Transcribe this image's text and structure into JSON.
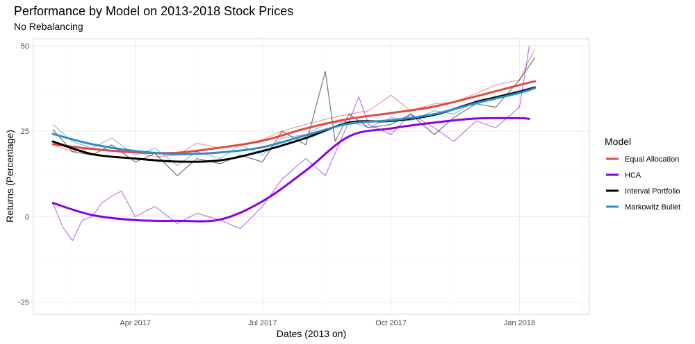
{
  "chart_data": {
    "type": "line",
    "title": "Performance by Model on 2013-2018 Stock Prices",
    "subtitle": "No Rebalancing",
    "xlabel": "Dates (2013 on)",
    "ylabel": "Returns (Percentage)",
    "x_ticks": [
      {
        "date": "2017-04-01",
        "label": "Apr 2017"
      },
      {
        "date": "2017-07-01",
        "label": "Jul 2017"
      },
      {
        "date": "2017-10-01",
        "label": "Oct 2017"
      },
      {
        "date": "2018-01-01",
        "label": "Jan 2018"
      }
    ],
    "y_ticks": [
      -25,
      0,
      25,
      50
    ],
    "xlim": [
      "2017-01-18",
      "2018-02-20"
    ],
    "ylim": [
      -28.5,
      52
    ],
    "grid": true,
    "legend": {
      "title": "Model",
      "position": "right"
    },
    "series": [
      {
        "name": "Equal Allocation",
        "color": "#E24A3F",
        "smooth": [
          {
            "x": "2017-02-01",
            "y": 21.2
          },
          {
            "x": "2017-03-01",
            "y": 19.8
          },
          {
            "x": "2017-04-01",
            "y": 18.8
          },
          {
            "x": "2017-05-01",
            "y": 18.7
          },
          {
            "x": "2017-06-01",
            "y": 20.2
          },
          {
            "x": "2017-07-01",
            "y": 22.2
          },
          {
            "x": "2017-08-01",
            "y": 25.8
          },
          {
            "x": "2017-09-01",
            "y": 28.6
          },
          {
            "x": "2017-10-01",
            "y": 30.3
          },
          {
            "x": "2017-11-01",
            "y": 32.2
          },
          {
            "x": "2017-12-01",
            "y": 35.2
          },
          {
            "x": "2018-01-01",
            "y": 38.5
          },
          {
            "x": "2018-01-12",
            "y": 39.6
          }
        ],
        "raw": [
          {
            "x": "2017-02-01",
            "y": 21
          },
          {
            "x": "2017-02-15",
            "y": 19
          },
          {
            "x": "2017-03-01",
            "y": 20
          },
          {
            "x": "2017-03-15",
            "y": 19.5
          },
          {
            "x": "2017-04-01",
            "y": 19
          },
          {
            "x": "2017-04-15",
            "y": 17.5
          },
          {
            "x": "2017-05-01",
            "y": 18
          },
          {
            "x": "2017-05-15",
            "y": 21.5
          },
          {
            "x": "2017-06-01",
            "y": 20
          },
          {
            "x": "2017-06-15",
            "y": 21
          },
          {
            "x": "2017-07-01",
            "y": 22.5
          },
          {
            "x": "2017-07-15",
            "y": 25
          },
          {
            "x": "2017-08-01",
            "y": 27
          },
          {
            "x": "2017-08-15",
            "y": 28.5
          },
          {
            "x": "2017-09-01",
            "y": 30
          },
          {
            "x": "2017-09-15",
            "y": 31
          },
          {
            "x": "2017-10-01",
            "y": 35.5
          },
          {
            "x": "2017-10-15",
            "y": 31
          },
          {
            "x": "2017-11-01",
            "y": 33
          },
          {
            "x": "2017-11-15",
            "y": 33.5
          },
          {
            "x": "2017-12-01",
            "y": 36
          },
          {
            "x": "2017-12-15",
            "y": 38.5
          },
          {
            "x": "2018-01-01",
            "y": 40
          },
          {
            "x": "2018-01-12",
            "y": 49
          }
        ]
      },
      {
        "name": "HCA",
        "color": "#8A00E0",
        "smooth": [
          {
            "x": "2017-02-01",
            "y": 4
          },
          {
            "x": "2017-03-01",
            "y": 0.5
          },
          {
            "x": "2017-04-01",
            "y": -1
          },
          {
            "x": "2017-05-01",
            "y": -1.2
          },
          {
            "x": "2017-06-01",
            "y": -0.8
          },
          {
            "x": "2017-07-01",
            "y": 4.5
          },
          {
            "x": "2017-08-01",
            "y": 13.5
          },
          {
            "x": "2017-09-01",
            "y": 23.5
          },
          {
            "x": "2017-10-01",
            "y": 25.8
          },
          {
            "x": "2017-11-01",
            "y": 27.5
          },
          {
            "x": "2017-12-01",
            "y": 28.7
          },
          {
            "x": "2018-01-01",
            "y": 28.8
          },
          {
            "x": "2018-01-08",
            "y": 28.6
          }
        ],
        "raw": [
          {
            "x": "2017-02-01",
            "y": 4
          },
          {
            "x": "2017-02-08",
            "y": -3
          },
          {
            "x": "2017-02-15",
            "y": -7
          },
          {
            "x": "2017-02-22",
            "y": -1
          },
          {
            "x": "2017-03-01",
            "y": 0
          },
          {
            "x": "2017-03-08",
            "y": 4
          },
          {
            "x": "2017-03-15",
            "y": 6
          },
          {
            "x": "2017-03-22",
            "y": 7.5
          },
          {
            "x": "2017-04-01",
            "y": 0
          },
          {
            "x": "2017-04-15",
            "y": 3
          },
          {
            "x": "2017-05-01",
            "y": -2
          },
          {
            "x": "2017-05-15",
            "y": 1
          },
          {
            "x": "2017-06-01",
            "y": -1
          },
          {
            "x": "2017-06-15",
            "y": -3.5
          },
          {
            "x": "2017-07-01",
            "y": 3
          },
          {
            "x": "2017-07-15",
            "y": 11
          },
          {
            "x": "2017-08-01",
            "y": 17
          },
          {
            "x": "2017-08-15",
            "y": 12
          },
          {
            "x": "2017-09-01",
            "y": 28
          },
          {
            "x": "2017-09-08",
            "y": 35
          },
          {
            "x": "2017-09-15",
            "y": 27
          },
          {
            "x": "2017-10-01",
            "y": 24
          },
          {
            "x": "2017-10-15",
            "y": 30
          },
          {
            "x": "2017-11-01",
            "y": 26
          },
          {
            "x": "2017-11-15",
            "y": 22
          },
          {
            "x": "2017-12-01",
            "y": 28
          },
          {
            "x": "2017-12-15",
            "y": 26
          },
          {
            "x": "2018-01-01",
            "y": 32
          },
          {
            "x": "2018-01-08",
            "y": 50
          }
        ]
      },
      {
        "name": "Interval Portfolio",
        "color": "#000000",
        "smooth": [
          {
            "x": "2017-02-01",
            "y": 22
          },
          {
            "x": "2017-03-01",
            "y": 18.3
          },
          {
            "x": "2017-04-01",
            "y": 17
          },
          {
            "x": "2017-05-01",
            "y": 16.1
          },
          {
            "x": "2017-06-01",
            "y": 16.5
          },
          {
            "x": "2017-07-01",
            "y": 19.2
          },
          {
            "x": "2017-08-01",
            "y": 23
          },
          {
            "x": "2017-09-01",
            "y": 27.5
          },
          {
            "x": "2017-10-01",
            "y": 28
          },
          {
            "x": "2017-11-01",
            "y": 29.8
          },
          {
            "x": "2017-12-01",
            "y": 33.5
          },
          {
            "x": "2018-01-01",
            "y": 36.5
          },
          {
            "x": "2018-01-12",
            "y": 37.8
          }
        ],
        "raw": [
          {
            "x": "2017-02-01",
            "y": 25.5
          },
          {
            "x": "2017-02-15",
            "y": 19
          },
          {
            "x": "2017-03-01",
            "y": 18
          },
          {
            "x": "2017-03-15",
            "y": 21
          },
          {
            "x": "2017-04-01",
            "y": 16
          },
          {
            "x": "2017-04-15",
            "y": 18.5
          },
          {
            "x": "2017-05-01",
            "y": 12
          },
          {
            "x": "2017-05-15",
            "y": 17
          },
          {
            "x": "2017-06-01",
            "y": 15.5
          },
          {
            "x": "2017-06-15",
            "y": 18
          },
          {
            "x": "2017-07-01",
            "y": 16
          },
          {
            "x": "2017-07-15",
            "y": 25
          },
          {
            "x": "2017-08-01",
            "y": 21
          },
          {
            "x": "2017-08-15",
            "y": 42.5
          },
          {
            "x": "2017-08-22",
            "y": 22
          },
          {
            "x": "2017-09-01",
            "y": 30
          },
          {
            "x": "2017-09-15",
            "y": 26
          },
          {
            "x": "2017-10-01",
            "y": 27
          },
          {
            "x": "2017-10-15",
            "y": 30
          },
          {
            "x": "2017-11-01",
            "y": 24
          },
          {
            "x": "2017-11-15",
            "y": 29
          },
          {
            "x": "2017-12-01",
            "y": 33
          },
          {
            "x": "2017-12-15",
            "y": 32
          },
          {
            "x": "2018-01-01",
            "y": 40
          },
          {
            "x": "2018-01-12",
            "y": 46.5
          }
        ]
      },
      {
        "name": "Markowitz Bullet",
        "color": "#2E8CC8",
        "smooth": [
          {
            "x": "2017-02-01",
            "y": 24.2
          },
          {
            "x": "2017-03-01",
            "y": 21.2
          },
          {
            "x": "2017-04-01",
            "y": 19.2
          },
          {
            "x": "2017-05-01",
            "y": 18.3
          },
          {
            "x": "2017-06-01",
            "y": 18.8
          },
          {
            "x": "2017-07-01",
            "y": 20.3
          },
          {
            "x": "2017-08-01",
            "y": 23.8
          },
          {
            "x": "2017-09-01",
            "y": 27.2
          },
          {
            "x": "2017-10-01",
            "y": 28.2
          },
          {
            "x": "2017-11-01",
            "y": 30
          },
          {
            "x": "2017-12-01",
            "y": 33.2
          },
          {
            "x": "2018-01-01",
            "y": 36.2
          },
          {
            "x": "2018-01-12",
            "y": 37.6
          }
        ],
        "raw": [
          {
            "x": "2017-02-01",
            "y": 27
          },
          {
            "x": "2017-02-15",
            "y": 22
          },
          {
            "x": "2017-03-01",
            "y": 20
          },
          {
            "x": "2017-03-15",
            "y": 23
          },
          {
            "x": "2017-04-01",
            "y": 18
          },
          {
            "x": "2017-04-15",
            "y": 20
          },
          {
            "x": "2017-05-01",
            "y": 15
          },
          {
            "x": "2017-05-15",
            "y": 19
          },
          {
            "x": "2017-06-01",
            "y": 17
          },
          {
            "x": "2017-06-15",
            "y": 21
          },
          {
            "x": "2017-07-01",
            "y": 18
          },
          {
            "x": "2017-07-15",
            "y": 23
          },
          {
            "x": "2017-08-01",
            "y": 24
          },
          {
            "x": "2017-08-15",
            "y": 27
          },
          {
            "x": "2017-09-01",
            "y": 28
          },
          {
            "x": "2017-09-15",
            "y": 26
          },
          {
            "x": "2017-10-01",
            "y": 29
          },
          {
            "x": "2017-10-15",
            "y": 28
          },
          {
            "x": "2017-11-01",
            "y": 31
          },
          {
            "x": "2017-11-15",
            "y": 30
          },
          {
            "x": "2017-12-01",
            "y": 34
          },
          {
            "x": "2017-12-15",
            "y": 35
          },
          {
            "x": "2018-01-01",
            "y": 37
          },
          {
            "x": "2018-01-12",
            "y": 38
          }
        ]
      }
    ]
  }
}
